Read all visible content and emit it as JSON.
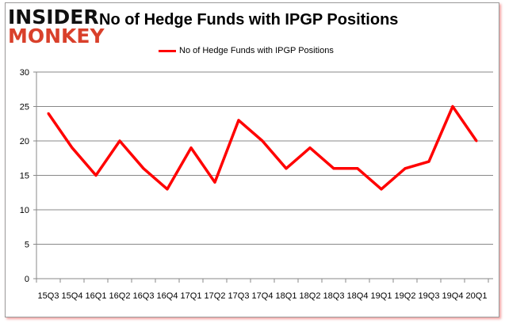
{
  "logo": {
    "line1": "INSIDER",
    "line2": "MONKEY"
  },
  "chart_data": {
    "type": "line",
    "title": "No of Hedge Funds with IPGP Positions",
    "legend": [
      "No of Hedge Funds with IPGP Positions"
    ],
    "legend_position": "top-center",
    "categories": [
      "15Q3",
      "15Q4",
      "16Q1",
      "16Q2",
      "16Q3",
      "16Q4",
      "17Q1",
      "17Q2",
      "17Q3",
      "17Q4",
      "18Q1",
      "18Q2",
      "18Q3",
      "18Q4",
      "19Q1",
      "19Q2",
      "19Q3",
      "19Q4",
      "20Q1"
    ],
    "series": [
      {
        "name": "No of Hedge Funds with IPGP Positions",
        "color": "#ff0000",
        "values": [
          24,
          19,
          15,
          20,
          16,
          13,
          19,
          14,
          23,
          20,
          16,
          19,
          16,
          16,
          13,
          16,
          17,
          25,
          20
        ]
      }
    ],
    "yticks": [
      0,
      5,
      10,
      15,
      20,
      25,
      30
    ],
    "ylim": [
      0,
      30
    ],
    "grid": true,
    "xlabel": "",
    "ylabel": ""
  }
}
